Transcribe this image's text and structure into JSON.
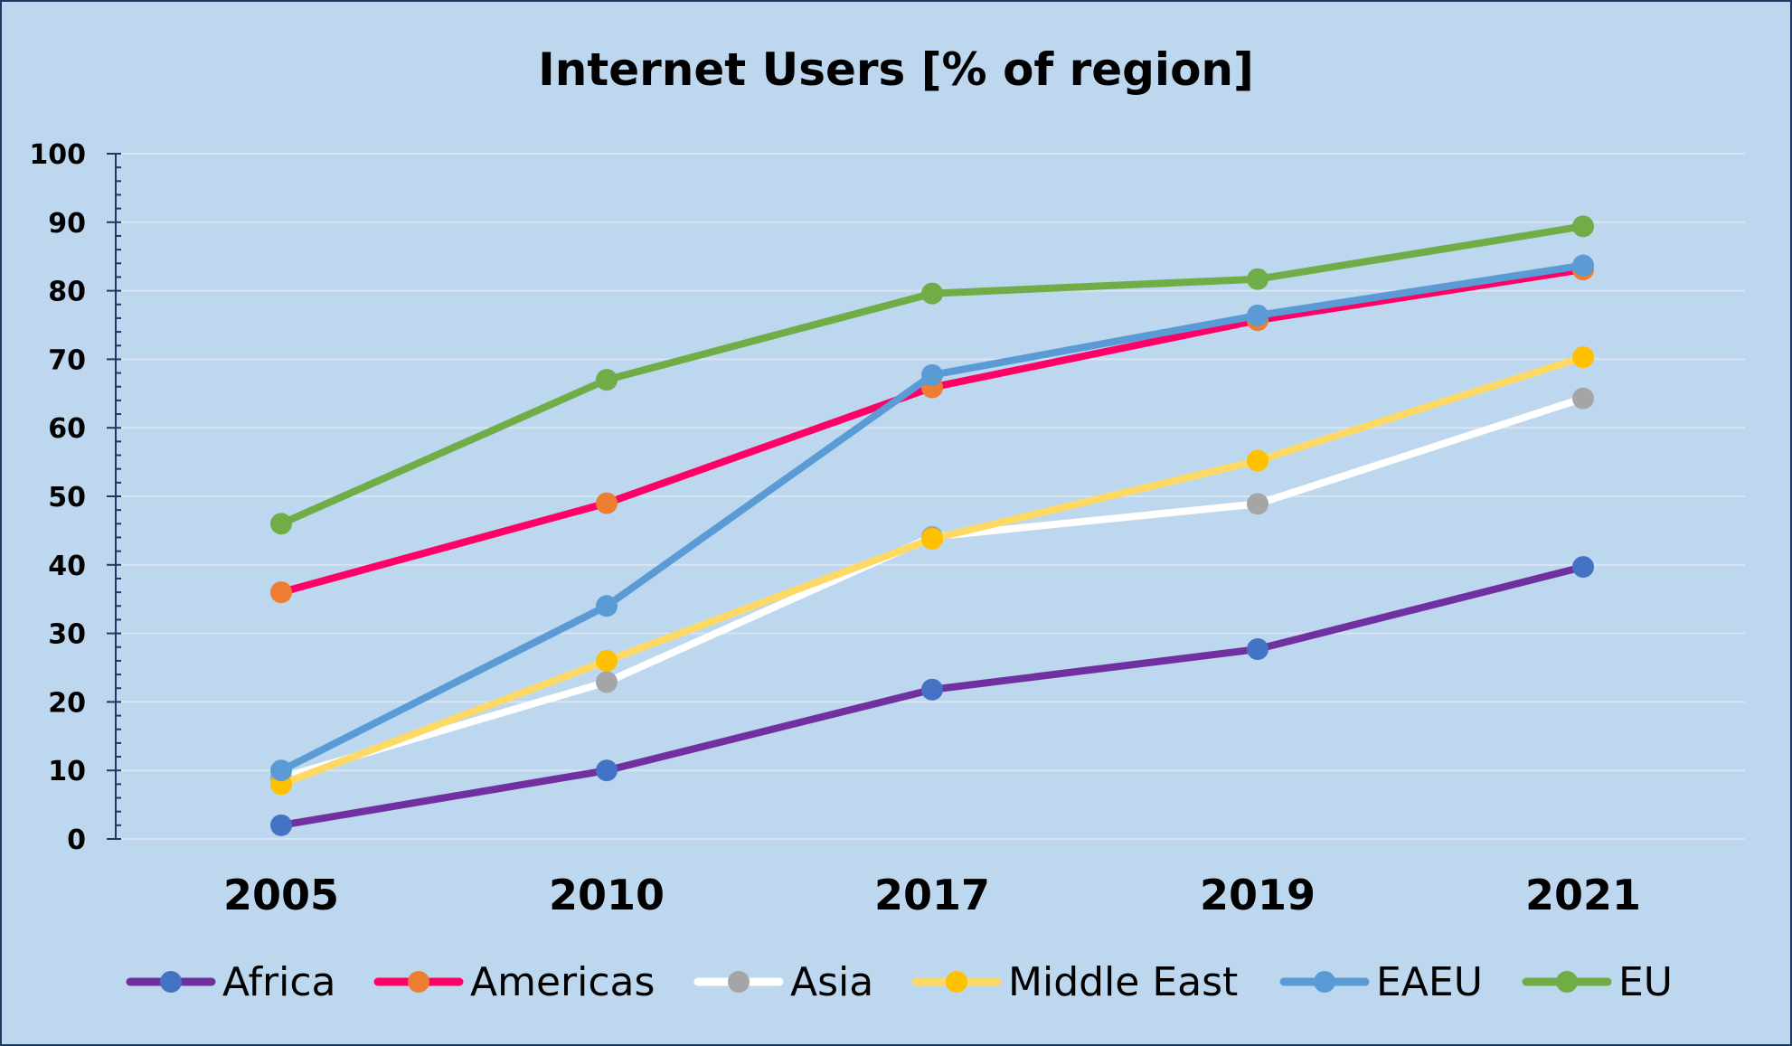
{
  "chart_data": {
    "type": "line",
    "title": "Internet Users [% of region]",
    "xlabel": "",
    "ylabel": "",
    "categories": [
      "2005",
      "2010",
      "2017",
      "2019",
      "2021"
    ],
    "ylim": [
      0,
      100
    ],
    "yticks": [
      0,
      10,
      20,
      30,
      40,
      50,
      60,
      70,
      80,
      90,
      100
    ],
    "grid": true,
    "legend_position": "bottom",
    "background_color": "#BDD7EE",
    "border_color": "#1F3864",
    "series": [
      {
        "name": "Africa",
        "values": [
          2,
          10,
          21.8,
          27.7,
          39.7
        ],
        "line_color": "#7030A0",
        "marker_color": "#4472C4"
      },
      {
        "name": "Americas",
        "values": [
          36,
          49,
          65.9,
          75.7,
          83.1
        ],
        "line_color": "#FF0066",
        "marker_color": "#ED7D31"
      },
      {
        "name": "Asia",
        "values": [
          8.9,
          22.9,
          44.1,
          48.9,
          64.3
        ],
        "line_color": "#FFFFFF",
        "marker_color": "#A5A5A5"
      },
      {
        "name": "Middle East",
        "values": [
          8,
          26,
          43.8,
          55.2,
          70.3
        ],
        "line_color": "#FFD966",
        "marker_color": "#FFC000"
      },
      {
        "name": "EAEU",
        "values": [
          10,
          34,
          67.7,
          76.4,
          83.7
        ],
        "line_color": "#5B9BD5",
        "marker_color": "#5B9BD5"
      },
      {
        "name": "EU",
        "values": [
          46,
          67,
          79.6,
          81.7,
          89.4
        ],
        "line_color": "#70AD47",
        "marker_color": "#70AD47"
      }
    ]
  }
}
